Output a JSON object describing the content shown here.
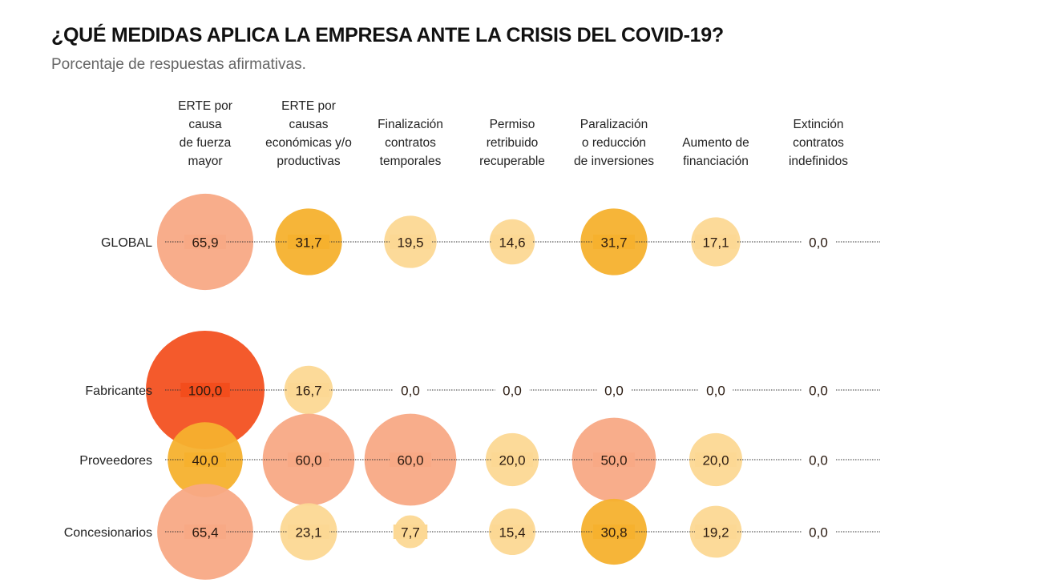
{
  "title": "¿QUÉ MEDIDAS APLICA LA EMPRESA ANTE LA CRISIS DEL COVID-19?",
  "subtitle": "Porcentaje de respuestas afirmativas.",
  "chart_data": {
    "type": "bubble",
    "title": "¿QUÉ MEDIDAS APLICA LA EMPRESA ANTE LA CRISIS DEL COVID-19?",
    "subtitle": "Porcentaje de respuestas afirmativas.",
    "categories": [
      [
        "ERTE por",
        "causa",
        "de fuerza",
        "mayor"
      ],
      [
        "ERTE por",
        "causas",
        "económicas y/o",
        "productivas"
      ],
      [
        "Finalización",
        "contratos",
        "temporales"
      ],
      [
        "Permiso",
        "retribuido",
        "recuperable"
      ],
      [
        "Paralización",
        "o reducción",
        "de inversiones"
      ],
      [
        "Aumento de",
        "financiación"
      ],
      [
        "Extinción",
        "contratos",
        "indefinidos"
      ]
    ],
    "series": [
      {
        "name": "GLOBAL",
        "values": [
          65.9,
          31.7,
          19.5,
          14.6,
          31.7,
          17.1,
          0.0
        ],
        "labels": [
          "65,9",
          "31,7",
          "19,5",
          "14,6",
          "31,7",
          "17,1",
          "0,0"
        ]
      },
      {
        "name": "Fabricantes",
        "values": [
          100.0,
          16.7,
          0.0,
          0.0,
          0.0,
          0.0,
          0.0
        ],
        "labels": [
          "100,0",
          "16,7",
          "0,0",
          "0,0",
          "0,0",
          "0,0",
          "0,0"
        ]
      },
      {
        "name": "Proveedores",
        "values": [
          40.0,
          60.0,
          60.0,
          20.0,
          50.0,
          20.0,
          0.0
        ],
        "labels": [
          "40,0",
          "60,0",
          "60,0",
          "20,0",
          "50,0",
          "20,0",
          "0,0"
        ]
      },
      {
        "name": "Concesionarios",
        "values": [
          65.4,
          23.1,
          7.7,
          15.4,
          30.8,
          19.2,
          0.0
        ],
        "labels": [
          "65,4",
          "23,1",
          "7,7",
          "15,4",
          "30,8",
          "19,2",
          "0,0"
        ]
      }
    ],
    "size_encoding": "area proportional to value",
    "colors": {
      "low": "#fcd894",
      "mid": "#f6b12e",
      "high": "#f8a985",
      "max": "#f34d1c"
    }
  }
}
